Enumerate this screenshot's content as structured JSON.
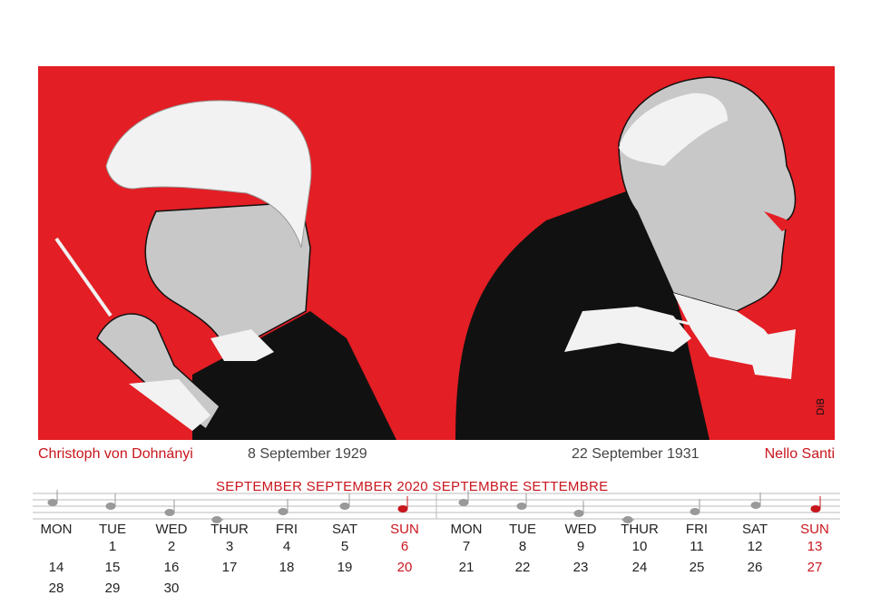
{
  "illustration": {
    "signature": "DiB"
  },
  "captions": {
    "left_name": "Christoph von Dohnányi",
    "left_date": "8 September 1929",
    "right_date": "22 September 1931",
    "right_name": "Nello Santi"
  },
  "calendar": {
    "title": "SEPTEMBER  SEPTEMBER  2020  SEPTEMBRE  SETTEMBRE",
    "weekdays": [
      "MON",
      "TUE",
      "WED",
      "THUR",
      "FRI",
      "SAT",
      "SUN",
      "MON",
      "TUE",
      "WED",
      "THUR",
      "FRI",
      "SAT",
      "SUN"
    ],
    "weeks": [
      [
        "",
        "1",
        "2",
        "3",
        "4",
        "5",
        "6",
        "7",
        "8",
        "9",
        "10",
        "11",
        "12",
        "13"
      ],
      [
        "14",
        "15",
        "16",
        "17",
        "18",
        "19",
        "20",
        "21",
        "22",
        "23",
        "24",
        "25",
        "26",
        "27"
      ],
      [
        "28",
        "29",
        "30",
        "",
        "",
        "",
        "",
        "",
        "",
        "",
        "",
        "",
        "",
        ""
      ]
    ]
  },
  "colors": {
    "accent": "#c8161d",
    "background": "#e31e24"
  }
}
